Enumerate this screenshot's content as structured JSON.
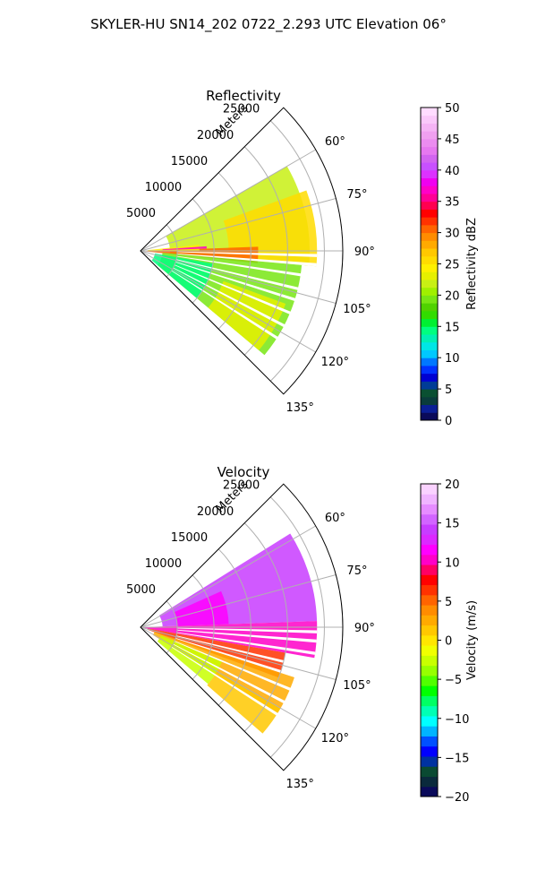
{
  "figure_title": "SKYLER-HU  SN14_202  0722_2.293 UTC Elevation 06°",
  "chart_data": [
    {
      "type": "heatmap",
      "subtype": "polar-sector",
      "title": "Reflectivity",
      "r_label": "Meters",
      "r_ticks": [
        5000,
        10000,
        15000,
        20000,
        25000
      ],
      "r_tick_labels": [
        "5000",
        "10000",
        "15000",
        "20000",
        "25000"
      ],
      "r_range": [
        0,
        27500
      ],
      "theta_ticks": [
        60,
        75,
        90,
        105,
        120,
        135
      ],
      "theta_tick_labels": [
        "60°",
        "75°",
        "90°",
        "105°",
        "120°",
        "135°"
      ],
      "theta_range": [
        45,
        135
      ],
      "colorbar": {
        "label": "Reflectivity dBZ",
        "range": [
          0,
          50
        ],
        "ticks": [
          0,
          5,
          10,
          15,
          20,
          25,
          30,
          35,
          40,
          45,
          50
        ],
        "tick_labels": [
          "0",
          "5",
          "10",
          "15",
          "20",
          "25",
          "30",
          "35",
          "40",
          "45",
          "50"
        ]
      },
      "coverage": {
        "theta_start": 51,
        "theta_end": 131,
        "r_max": 25000
      },
      "regions": [
        {
          "theta": [
            60,
            95
          ],
          "r": [
            4000,
            23000
          ],
          "value": 22
        },
        {
          "theta": [
            70,
            95
          ],
          "r": [
            12000,
            24000
          ],
          "value": 25
        },
        {
          "theta": [
            88,
            96
          ],
          "r": [
            500,
            16000
          ],
          "value": 30
        },
        {
          "theta": [
            84,
            90
          ],
          "r": [
            1000,
            8000
          ],
          "value": 24
        },
        {
          "theta": [
            86,
            88
          ],
          "r": [
            3000,
            9000
          ],
          "value": 37
        },
        {
          "theta": [
            95,
            130
          ],
          "r": [
            3000,
            22000
          ],
          "value": 19
        },
        {
          "theta": [
            100,
            130
          ],
          "r": [
            2000,
            10000
          ],
          "value": 14
        },
        {
          "theta": [
            110,
            130
          ],
          "r": [
            12000,
            21000
          ],
          "value": 23
        }
      ]
    },
    {
      "type": "heatmap",
      "subtype": "polar-sector",
      "title": "Velocity",
      "r_label": "Meters",
      "r_ticks": [
        5000,
        10000,
        15000,
        20000,
        25000
      ],
      "r_tick_labels": [
        "5000",
        "10000",
        "15000",
        "20000",
        "25000"
      ],
      "r_range": [
        0,
        27500
      ],
      "theta_ticks": [
        60,
        75,
        90,
        105,
        120,
        135
      ],
      "theta_tick_labels": [
        "60°",
        "75°",
        "90°",
        "105°",
        "120°",
        "135°"
      ],
      "theta_range": [
        45,
        135
      ],
      "colorbar": {
        "label": "Velocity (m/s)",
        "range": [
          -20,
          20
        ],
        "ticks": [
          -20,
          -15,
          -10,
          -5,
          0,
          5,
          10,
          15,
          20
        ],
        "tick_labels": [
          "−20",
          "−15",
          "−10",
          "−5",
          "0",
          "5",
          "10",
          "15",
          "20"
        ]
      },
      "coverage": {
        "theta_start": 51,
        "theta_end": 131,
        "r_max": 25000
      },
      "regions": [
        {
          "theta": [
            58,
            88
          ],
          "r": [
            3000,
            24000
          ],
          "value": 14
        },
        {
          "theta": [
            66,
            88
          ],
          "r": [
            5000,
            12000
          ],
          "value": 12
        },
        {
          "theta": [
            88,
            100
          ],
          "r": [
            500,
            24000
          ],
          "value": 10
        },
        {
          "theta": [
            100,
            110
          ],
          "r": [
            1000,
            20000
          ],
          "value": 6
        },
        {
          "theta": [
            108,
            122
          ],
          "r": [
            2000,
            22000
          ],
          "value": 3
        },
        {
          "theta": [
            112,
            130
          ],
          "r": [
            3000,
            12000
          ],
          "value": -2
        },
        {
          "theta": [
            120,
            131
          ],
          "r": [
            12000,
            22000
          ],
          "value": 1
        }
      ]
    }
  ]
}
